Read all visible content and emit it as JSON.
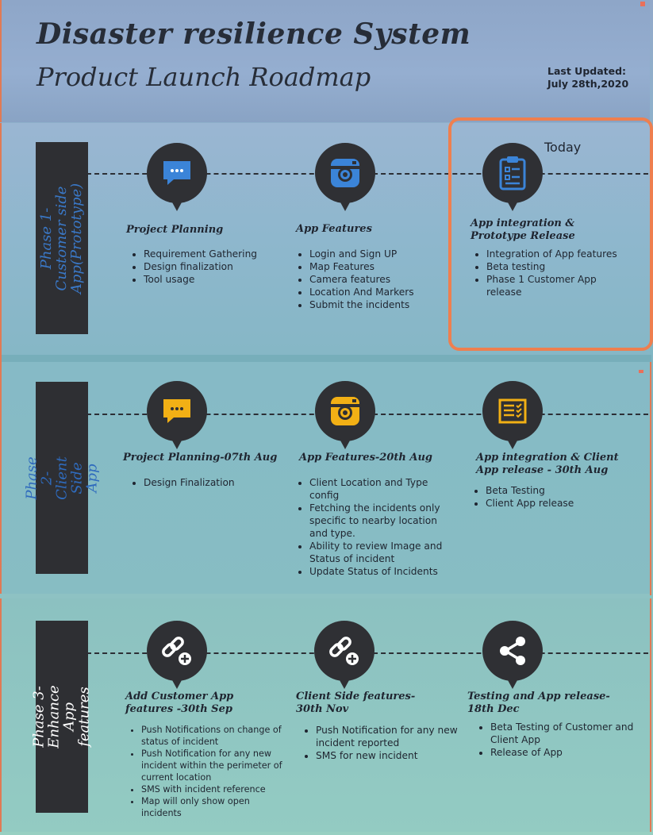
{
  "header": {
    "title": "Disaster resilience System",
    "subtitle": "Product Launch Roadmap",
    "last_updated_label": "Last Updated:",
    "last_updated_date": "July 28th,2020"
  },
  "today_label": "Today",
  "colors": {
    "accent": "#ee7f4f",
    "phase1_icon": "#3b84d8",
    "phase2_icon": "#f2b015",
    "phase3_icon": "#ffffff",
    "dark": "#2f3034"
  },
  "phases": [
    {
      "label": "Phase 1-Customer side App(Prototype)",
      "items": [
        {
          "icon": "chat-bubble-icon",
          "title": "Project Planning",
          "bullets": [
            "Requirement Gathering",
            "Design finalization",
            "Tool usage"
          ]
        },
        {
          "icon": "camera-icon",
          "title": "App Features",
          "bullets": [
            "Login and Sign UP",
            "Map Features",
            "Camera features",
            "Location And Markers",
            "Submit the incidents"
          ]
        },
        {
          "icon": "clipboard-icon",
          "title": "App integration & Prototype Release",
          "bullets": [
            "Integration of App features",
            "Beta testing",
            "Phase 1 Customer App release"
          ]
        }
      ]
    },
    {
      "label": "Phase 2- Client Side App",
      "items": [
        {
          "icon": "chat-bubble-icon",
          "title": "Project Planning-07th Aug",
          "bullets": [
            "Design Finalization"
          ]
        },
        {
          "icon": "camera-icon",
          "title": "App Features-20th Aug",
          "bullets": [
            "Client Location and Type config",
            "Fetching the incidents only specific to nearby location and type.",
            "Ability to review Image and Status of incident",
            "Update Status of Incidents"
          ]
        },
        {
          "icon": "checklist-icon",
          "title": "App integration & Client App release - 30th Aug",
          "bullets": [
            "Beta Testing",
            "Client App release"
          ]
        }
      ]
    },
    {
      "label": "Phase 3- Enhance App features",
      "items": [
        {
          "icon": "link-add-icon",
          "title": "Add Customer App features -30th Sep",
          "bullets": [
            "Push Notifications on change of status of incident",
            "Push Notification for any new incident within the perimeter of current location",
            "SMS with incident reference",
            "Map will only show open incidents"
          ]
        },
        {
          "icon": "link-add-icon",
          "title": "Client Side features- 30th Nov",
          "bullets": [
            "Push Notification for any new incident reported",
            "SMS for new incident"
          ]
        },
        {
          "icon": "share-icon",
          "title": "Testing and App release- 18th Dec",
          "bullets": [
            "Beta Testing of Customer and Client App",
            "Release of App"
          ]
        }
      ]
    }
  ]
}
